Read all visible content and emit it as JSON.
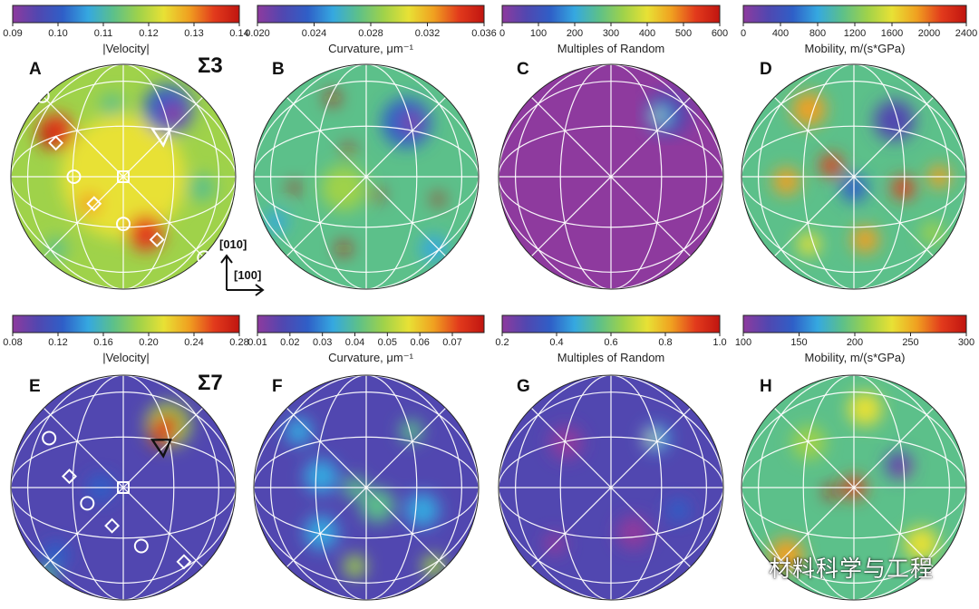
{
  "panels": [
    {
      "letter": "A",
      "colorbar": {
        "label": "|Velocity|",
        "ticks": [
          "0.09",
          "0.10",
          "0.11",
          "0.12",
          "0.13",
          "0.14"
        ]
      },
      "sigma": "Σ3",
      "map": "A"
    },
    {
      "letter": "B",
      "colorbar": {
        "label": "Curvature, μm⁻¹",
        "ticks": [
          "0.020",
          "0.024",
          "0.028",
          "0.032",
          "0.036"
        ]
      },
      "map": "B"
    },
    {
      "letter": "C",
      "colorbar": {
        "label": "Multiples of Random",
        "ticks": [
          "0",
          "100",
          "200",
          "300",
          "400",
          "500",
          "600"
        ]
      },
      "map": "C"
    },
    {
      "letter": "D",
      "colorbar": {
        "label": "Mobility, m/(s*GPa)",
        "ticks": [
          "0",
          "400",
          "800",
          "1200",
          "1600",
          "2000",
          "2400"
        ]
      },
      "map": "D"
    },
    {
      "letter": "E",
      "colorbar": {
        "label": "|Velocity|",
        "ticks": [
          "0.08",
          "0.12",
          "0.16",
          "0.20",
          "0.24",
          "0.28"
        ]
      },
      "sigma": "Σ7",
      "map": "E"
    },
    {
      "letter": "F",
      "colorbar": {
        "label": "Curvature, μm⁻¹",
        "ticks": [
          "0.01",
          "0.02",
          "0.03",
          "0.04",
          "0.05",
          "0.06",
          "0.07"
        ]
      },
      "map": "F"
    },
    {
      "letter": "G",
      "colorbar": {
        "label": "Multiples of Random",
        "ticks": [
          "0.2",
          "0.4",
          "0.6",
          "0.8",
          "1.0"
        ]
      },
      "map": "G"
    },
    {
      "letter": "H",
      "colorbar": {
        "label": "Mobility, m/(s*GPa)",
        "ticks": [
          "100",
          "150",
          "200",
          "250",
          "300"
        ]
      },
      "map": "H"
    }
  ],
  "axes": {
    "x_label": "[100]",
    "y_label": "[010]"
  },
  "watermark": {
    "text": "材料科学与工程",
    "icon": "wechat-icon"
  },
  "colors": {
    "cmap": [
      "#8e3a9e",
      "#5147b0",
      "#2f5fc7",
      "#35a8e0",
      "#5cc08a",
      "#9fd24a",
      "#e8e135",
      "#f0a020",
      "#e23a1c",
      "#c01510"
    ]
  }
}
